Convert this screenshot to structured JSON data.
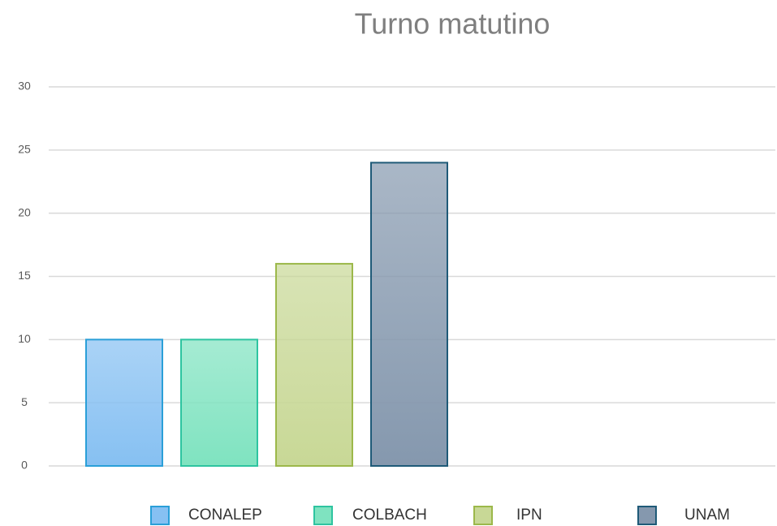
{
  "chart_data": {
    "type": "bar",
    "title": "Turno matutino",
    "categories": [
      null
    ],
    "series": [
      {
        "name": "CONALEP",
        "color": "#86c0f2",
        "edge": "#2a9fd8",
        "values": [
          10
        ]
      },
      {
        "name": "COLBACH",
        "color": "#7fe3c0",
        "edge": "#2ec4a0",
        "values": [
          10
        ]
      },
      {
        "name": "IPN",
        "color": "#c8d896",
        "edge": "#9cb84a",
        "values": [
          16
        ]
      },
      {
        "name": "UNAM",
        "color": "#8598ae",
        "edge": "#1f5a78",
        "values": [
          24
        ]
      }
    ],
    "ylim": [
      0,
      30
    ],
    "yticks": [
      0,
      5,
      10,
      15,
      20,
      25,
      30
    ],
    "grid": true,
    "legend": "bottom"
  }
}
